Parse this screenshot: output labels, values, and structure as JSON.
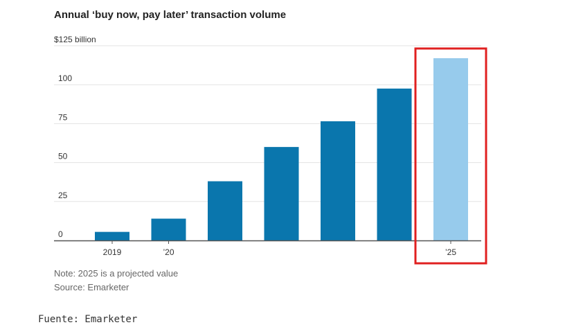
{
  "chart_data": {
    "type": "bar",
    "title": "Annual ‘buy now, pay later’ transaction volume",
    "y_unit_label": "$125 billion",
    "ylim": [
      0,
      125
    ],
    "y_ticks": [
      0,
      25,
      50,
      75,
      100
    ],
    "y_tick_labels": [
      "0",
      "25",
      "50",
      "75",
      "100"
    ],
    "categories": [
      "2019",
      "’20",
      "",
      "",
      "",
      "",
      "’25"
    ],
    "values": [
      5.5,
      14,
      38,
      60,
      76.5,
      97.5,
      117
    ],
    "grid": true,
    "colors": {
      "actual": "#0a76ad",
      "projected": "#97cbec",
      "grid": "#e3e3e3",
      "axis": "#555555",
      "highlight_box": "#e02020"
    },
    "highlight_index": 6,
    "notes": [
      "Note: 2025 is a projected value",
      "Source: Emarketer"
    ]
  },
  "caption": "Fuente: Emarketer"
}
